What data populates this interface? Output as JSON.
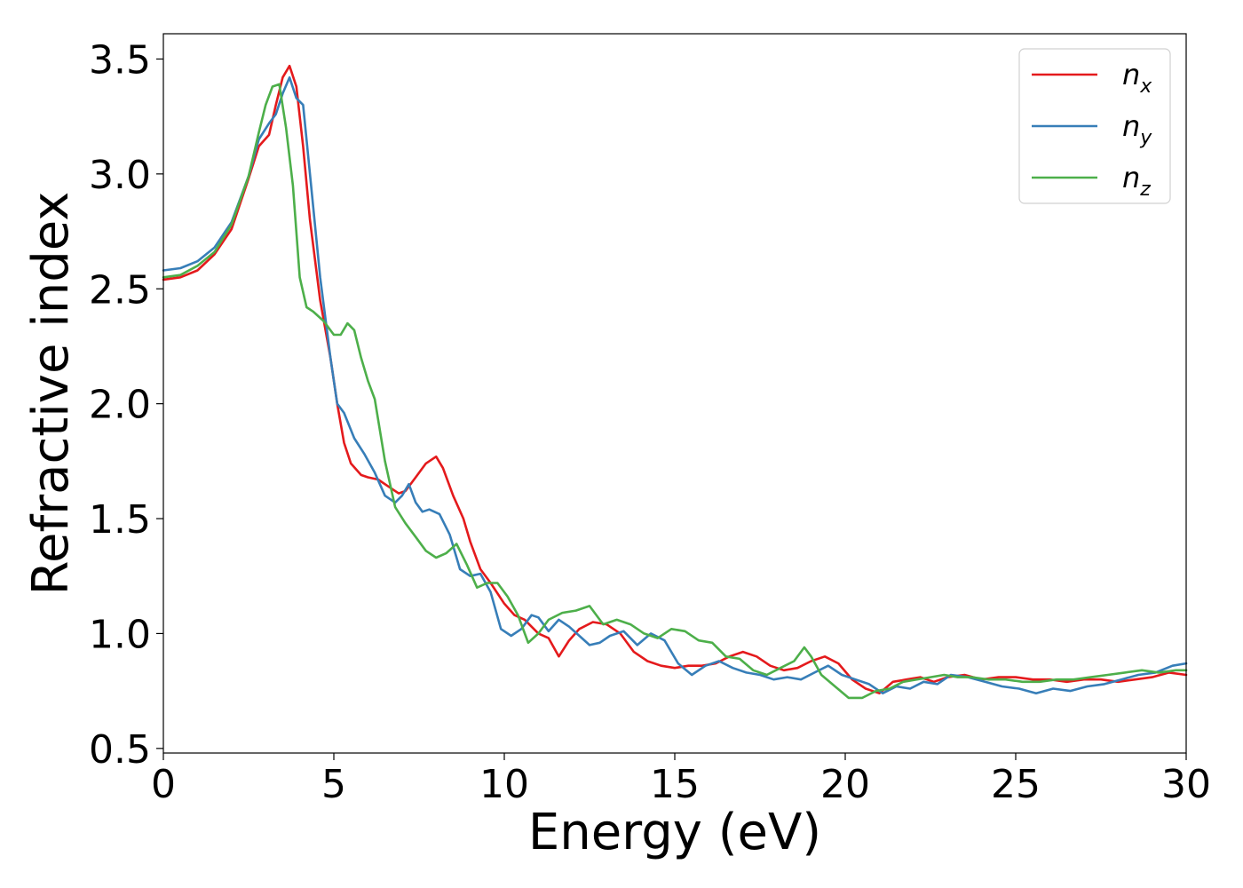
{
  "chart_data": {
    "type": "line",
    "title": "",
    "xlabel": "Energy (eV)",
    "ylabel": "Refractive index",
    "xlim": [
      0,
      30
    ],
    "ylim": [
      0.48,
      3.61
    ],
    "xticks": [
      0,
      5,
      10,
      15,
      20,
      25,
      30
    ],
    "xtick_labels": [
      "0",
      "5",
      "10",
      "15",
      "20",
      "25",
      "30"
    ],
    "yticks": [
      0.5,
      1.0,
      1.5,
      2.0,
      2.5,
      3.0,
      3.5
    ],
    "ytick_labels": [
      "0.5",
      "1.0",
      "1.5",
      "2.0",
      "2.5",
      "3.0",
      "3.5"
    ],
    "grid": false,
    "legend_position": "top-right",
    "series": [
      {
        "name": "n_x",
        "label_base": "n",
        "label_sub": "x",
        "color": "#e41a1c",
        "x": [
          0,
          0.5,
          1,
          1.5,
          2,
          2.5,
          2.8,
          3.1,
          3.3,
          3.5,
          3.7,
          3.9,
          4.1,
          4.3,
          4.6,
          4.9,
          5.1,
          5.3,
          5.5,
          5.8,
          6.0,
          6.3,
          6.6,
          6.9,
          7.1,
          7.4,
          7.7,
          8.0,
          8.2,
          8.5,
          8.8,
          9.0,
          9.3,
          9.6,
          10.0,
          10.3,
          10.6,
          11.0,
          11.3,
          11.6,
          11.9,
          12.2,
          12.6,
          13.0,
          13.4,
          13.8,
          14.2,
          14.6,
          15.0,
          15.4,
          15.8,
          16.2,
          16.6,
          17.0,
          17.4,
          17.8,
          18.2,
          18.6,
          19.0,
          19.4,
          19.8,
          20.2,
          20.6,
          21.0,
          21.4,
          21.8,
          22.2,
          22.6,
          23.0,
          23.5,
          24.0,
          24.5,
          25.0,
          25.5,
          26.0,
          26.5,
          27.0,
          27.5,
          28.0,
          28.5,
          29.0,
          29.5,
          30.0
        ],
        "y": [
          2.54,
          2.55,
          2.58,
          2.65,
          2.76,
          2.98,
          3.12,
          3.17,
          3.3,
          3.42,
          3.47,
          3.38,
          3.12,
          2.8,
          2.45,
          2.2,
          2.0,
          1.83,
          1.74,
          1.69,
          1.68,
          1.67,
          1.64,
          1.61,
          1.62,
          1.68,
          1.74,
          1.77,
          1.72,
          1.6,
          1.5,
          1.4,
          1.28,
          1.22,
          1.13,
          1.08,
          1.06,
          1.0,
          0.98,
          0.9,
          0.97,
          1.02,
          1.05,
          1.04,
          1.0,
          0.92,
          0.88,
          0.86,
          0.85,
          0.86,
          0.86,
          0.87,
          0.9,
          0.92,
          0.9,
          0.86,
          0.84,
          0.85,
          0.88,
          0.9,
          0.87,
          0.8,
          0.76,
          0.74,
          0.79,
          0.8,
          0.81,
          0.79,
          0.81,
          0.82,
          0.8,
          0.81,
          0.81,
          0.8,
          0.8,
          0.79,
          0.8,
          0.8,
          0.79,
          0.8,
          0.81,
          0.83,
          0.82
        ]
      },
      {
        "name": "n_y",
        "label_base": "n",
        "label_sub": "y",
        "color": "#377eb8",
        "x": [
          0,
          0.5,
          1,
          1.5,
          2,
          2.5,
          2.8,
          3.1,
          3.3,
          3.5,
          3.7,
          3.9,
          4.1,
          4.3,
          4.6,
          4.9,
          5.1,
          5.3,
          5.6,
          5.9,
          6.2,
          6.5,
          6.8,
          7.0,
          7.2,
          7.4,
          7.6,
          7.8,
          8.1,
          8.4,
          8.7,
          9.0,
          9.3,
          9.6,
          9.9,
          10.2,
          10.5,
          10.8,
          11.0,
          11.3,
          11.6,
          11.9,
          12.2,
          12.5,
          12.8,
          13.1,
          13.5,
          13.9,
          14.3,
          14.7,
          15.1,
          15.5,
          15.9,
          16.3,
          16.7,
          17.1,
          17.5,
          17.9,
          18.3,
          18.7,
          19.1,
          19.5,
          19.9,
          20.3,
          20.7,
          21.1,
          21.5,
          21.9,
          22.3,
          22.7,
          23.1,
          23.6,
          24.1,
          24.6,
          25.1,
          25.6,
          26.1,
          26.6,
          27.1,
          27.6,
          28.1,
          28.6,
          29.1,
          29.6,
          30.0
        ],
        "y": [
          2.58,
          2.59,
          2.62,
          2.68,
          2.79,
          2.99,
          3.15,
          3.22,
          3.26,
          3.35,
          3.42,
          3.33,
          3.3,
          3.0,
          2.55,
          2.2,
          2.0,
          1.96,
          1.85,
          1.78,
          1.7,
          1.6,
          1.57,
          1.6,
          1.65,
          1.57,
          1.53,
          1.54,
          1.52,
          1.43,
          1.28,
          1.25,
          1.26,
          1.18,
          1.02,
          0.99,
          1.02,
          1.08,
          1.07,
          1.01,
          1.06,
          1.03,
          0.99,
          0.95,
          0.96,
          0.99,
          1.01,
          0.95,
          1.0,
          0.97,
          0.87,
          0.82,
          0.86,
          0.88,
          0.85,
          0.83,
          0.82,
          0.8,
          0.81,
          0.8,
          0.83,
          0.86,
          0.82,
          0.8,
          0.78,
          0.74,
          0.77,
          0.76,
          0.79,
          0.78,
          0.82,
          0.81,
          0.79,
          0.77,
          0.76,
          0.74,
          0.76,
          0.75,
          0.77,
          0.78,
          0.8,
          0.82,
          0.83,
          0.86,
          0.87
        ]
      },
      {
        "name": "n_z",
        "label_base": "n",
        "label_sub": "z",
        "color": "#4daf4a",
        "x": [
          0,
          0.5,
          1,
          1.5,
          2,
          2.5,
          2.8,
          3.0,
          3.2,
          3.4,
          3.6,
          3.8,
          4.0,
          4.2,
          4.4,
          4.7,
          5.0,
          5.2,
          5.4,
          5.6,
          5.8,
          6.0,
          6.2,
          6.5,
          6.8,
          7.1,
          7.4,
          7.7,
          8.0,
          8.3,
          8.6,
          8.9,
          9.2,
          9.5,
          9.8,
          10.1,
          10.4,
          10.7,
          11.0,
          11.3,
          11.7,
          12.1,
          12.5,
          12.9,
          13.3,
          13.7,
          14.1,
          14.5,
          14.9,
          15.3,
          15.7,
          16.1,
          16.5,
          16.9,
          17.3,
          17.7,
          18.1,
          18.5,
          18.8,
          19.0,
          19.3,
          19.7,
          20.1,
          20.5,
          20.9,
          21.3,
          21.7,
          22.1,
          22.5,
          22.9,
          23.3,
          23.7,
          24.2,
          24.7,
          25.2,
          25.7,
          26.2,
          26.7,
          27.2,
          27.7,
          28.2,
          28.7,
          29.2,
          29.7,
          30.0
        ],
        "y": [
          2.55,
          2.56,
          2.6,
          2.66,
          2.78,
          2.99,
          3.18,
          3.3,
          3.38,
          3.39,
          3.2,
          2.95,
          2.55,
          2.42,
          2.4,
          2.36,
          2.3,
          2.3,
          2.35,
          2.32,
          2.2,
          2.1,
          2.02,
          1.75,
          1.55,
          1.48,
          1.42,
          1.36,
          1.33,
          1.35,
          1.39,
          1.3,
          1.2,
          1.22,
          1.22,
          1.16,
          1.08,
          0.96,
          1.0,
          1.06,
          1.09,
          1.1,
          1.12,
          1.04,
          1.06,
          1.04,
          1.0,
          0.98,
          1.02,
          1.01,
          0.97,
          0.96,
          0.9,
          0.89,
          0.84,
          0.82,
          0.85,
          0.88,
          0.94,
          0.9,
          0.82,
          0.77,
          0.72,
          0.72,
          0.75,
          0.76,
          0.79,
          0.8,
          0.81,
          0.82,
          0.81,
          0.81,
          0.8,
          0.8,
          0.79,
          0.79,
          0.8,
          0.8,
          0.81,
          0.82,
          0.83,
          0.84,
          0.83,
          0.84,
          0.84
        ]
      }
    ]
  }
}
